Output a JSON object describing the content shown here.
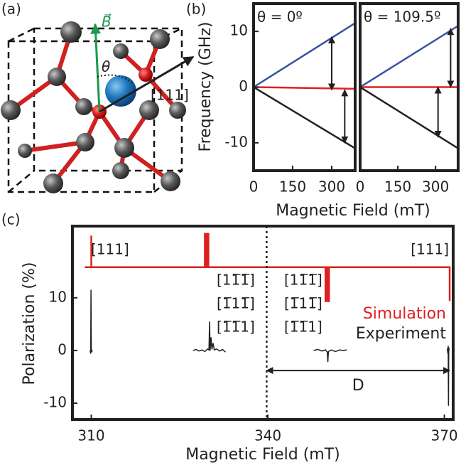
{
  "panel_labels": [
    "(a)",
    "(b)",
    "(c)"
  ],
  "diagram": {
    "field_label": "B⃗",
    "angle_label": "θ",
    "axis_label": "[111]"
  },
  "chart_data": [
    {
      "type": "line",
      "title": "θ = 0º",
      "ylabel": "Frequency (GHz)",
      "xlabel": "Magnetic Field (mT)",
      "x": [
        0,
        390
      ],
      "xlim": [
        0,
        390
      ],
      "ylim": [
        -15,
        15
      ],
      "xticks": [
        0,
        150,
        300
      ],
      "yticks": [
        -10,
        0,
        10
      ],
      "series": [
        {
          "color": "#3953a4",
          "values": [
            0,
            11.5
          ]
        },
        {
          "color": "#e02020",
          "values": [
            0,
            -0.3
          ]
        },
        {
          "color": "#231f20",
          "values": [
            0,
            -11
          ]
        }
      ],
      "arrows": [
        {
          "x": 300,
          "from": 9,
          "to": -0.5
        },
        {
          "x": 350,
          "from": -0.5,
          "to": -10
        }
      ]
    },
    {
      "type": "line",
      "title": "θ = 109.5º",
      "x": [
        0,
        390
      ],
      "xlim": [
        0,
        390
      ],
      "ylim": [
        -15,
        15
      ],
      "xticks": [
        0,
        150,
        300
      ],
      "series": [
        {
          "color": "#3953a4",
          "values": [
            0,
            11
          ]
        },
        {
          "color": "#e02020",
          "values": [
            0,
            0
          ]
        },
        {
          "color": "#231f20",
          "values": [
            0,
            -11
          ]
        }
      ],
      "arrows": [
        {
          "x": 360,
          "from": 10.5,
          "to": 0
        },
        {
          "x": 310,
          "from": 0,
          "to": -9
        }
      ]
    },
    {
      "type": "line",
      "ylabel": "Polarization (%)",
      "xlabel": "Magnetic Field (mT)",
      "xlim": [
        306.8,
        371.5
      ],
      "ylim": [
        -13.1,
        23.6
      ],
      "xticks": [
        310,
        340,
        370
      ],
      "yticks": [
        -10,
        0,
        10
      ],
      "legend": "right",
      "series": [
        {
          "name": "Simulation",
          "color": "#e02020",
          "x": [
            308.9,
            310,
            310,
            310,
            329.3,
            329.3,
            329.3,
            329.6,
            329.6,
            329.6,
            329.9,
            329.9,
            329.9,
            349.8,
            349.8,
            349.8,
            350.1,
            350.1,
            350.1,
            350.4,
            350.4,
            350.4,
            370.9,
            370.9
          ],
          "values": [
            15.8,
            15.8,
            21.8,
            15.8,
            15.8,
            22.3,
            15.8,
            15.8,
            22.3,
            15.8,
            15.8,
            22.3,
            15.8,
            15.8,
            9.2,
            15.8,
            15.8,
            9.2,
            15.8,
            15.8,
            9.2,
            15.8,
            15.8,
            9.4
          ]
        },
        {
          "name": "Experiment",
          "color": "#231f20",
          "x": [
            309.8,
            309.9,
            309.95,
            310.0,
            310.1,
            310.2,
            320,
            327.3,
            327.8,
            328.3,
            328.8,
            329.3,
            329.8,
            330.0,
            330.1,
            330.2,
            330.35,
            330.5,
            330.7,
            330.9,
            331.3,
            331.8,
            332.3,
            332.8,
            340,
            347.8,
            348.5,
            349.2,
            349.8,
            350.1,
            350.2,
            350.3,
            350.8,
            351.5,
            352.2,
            352.8,
            353.4,
            360,
            370.5,
            370.6,
            370.65,
            370.7,
            370.75,
            370.8
          ],
          "values": [
            0,
            -0.6,
            11.5,
            0.3,
            -0.2,
            0,
            null,
            0,
            0.2,
            -0.1,
            0.1,
            -0.2,
            0.3,
            0.1,
            5.5,
            0,
            2.5,
            0.2,
            1.4,
            0.1,
            0.3,
            -0.1,
            0.2,
            -0.3,
            null,
            0,
            0.2,
            -0.1,
            0.1,
            -0.3,
            -2.2,
            -0.2,
            0.1,
            -0.2,
            0.1,
            0,
            0.1,
            null,
            0.4,
            -0.6,
            0.9,
            -10.5,
            0.6,
            0
          ]
        }
      ],
      "vline": 339.8,
      "span": {
        "text": "D",
        "x": [
          339.8,
          370.9
        ],
        "y": -3.8
      },
      "annotations": [
        "[111]",
        "[111]",
        "[11̅1̅]",
        "[1̅11̅]",
        "[1̅1̅1]",
        "[11̅1̅]",
        "[1̅11̅]",
        "[1̅1̅1]"
      ]
    }
  ]
}
